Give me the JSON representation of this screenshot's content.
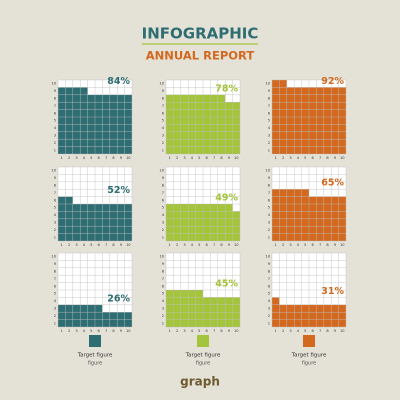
{
  "header": {
    "title": "INFOGRAPHIC",
    "subtitle": "ANNUAL REPORT"
  },
  "chart_data": [
    {
      "type": "waffle",
      "values": [
        84
      ],
      "value_labels": [
        "84%"
      ],
      "color": "#2e6d72",
      "xticks": [
        1,
        2,
        3,
        4,
        5,
        6,
        7,
        8,
        9,
        10
      ],
      "yticks": [
        1,
        2,
        3,
        4,
        5,
        6,
        7,
        8,
        9,
        10
      ]
    },
    {
      "type": "waffle",
      "values": [
        78
      ],
      "value_labels": [
        "78%"
      ],
      "color": "#a4c43b",
      "xticks": [
        1,
        2,
        3,
        4,
        5,
        6,
        7,
        8,
        9,
        10
      ],
      "yticks": [
        1,
        2,
        3,
        4,
        5,
        6,
        7,
        8,
        9,
        10
      ]
    },
    {
      "type": "waffle",
      "values": [
        92
      ],
      "value_labels": [
        "92%"
      ],
      "color": "#d3691f",
      "xticks": [
        1,
        2,
        3,
        4,
        5,
        6,
        7,
        8,
        9,
        10
      ],
      "yticks": [
        1,
        2,
        3,
        4,
        5,
        6,
        7,
        8,
        9,
        10
      ]
    },
    {
      "type": "waffle",
      "values": [
        52
      ],
      "value_labels": [
        "52%"
      ],
      "color": "#2e6d72",
      "xticks": [
        1,
        2,
        3,
        4,
        5,
        6,
        7,
        8,
        9,
        10
      ],
      "yticks": [
        1,
        2,
        3,
        4,
        5,
        6,
        7,
        8,
        9,
        10
      ]
    },
    {
      "type": "waffle",
      "values": [
        49
      ],
      "value_labels": [
        "49%"
      ],
      "color": "#a4c43b",
      "xticks": [
        1,
        2,
        3,
        4,
        5,
        6,
        7,
        8,
        9,
        10
      ],
      "yticks": [
        1,
        2,
        3,
        4,
        5,
        6,
        7,
        8,
        9,
        10
      ]
    },
    {
      "type": "waffle",
      "values": [
        65
      ],
      "value_labels": [
        "65%"
      ],
      "color": "#d3691f",
      "xticks": [
        1,
        2,
        3,
        4,
        5,
        6,
        7,
        8,
        9,
        10
      ],
      "yticks": [
        1,
        2,
        3,
        4,
        5,
        6,
        7,
        8,
        9,
        10
      ]
    },
    {
      "type": "waffle",
      "values": [
        26
      ],
      "value_labels": [
        "26%"
      ],
      "color": "#2e6d72",
      "xticks": [
        1,
        2,
        3,
        4,
        5,
        6,
        7,
        8,
        9,
        10
      ],
      "yticks": [
        1,
        2,
        3,
        4,
        5,
        6,
        7,
        8,
        9,
        10
      ]
    },
    {
      "type": "waffle",
      "values": [
        45
      ],
      "value_labels": [
        "45%"
      ],
      "color": "#a4c43b",
      "xticks": [
        1,
        2,
        3,
        4,
        5,
        6,
        7,
        8,
        9,
        10
      ],
      "yticks": [
        1,
        2,
        3,
        4,
        5,
        6,
        7,
        8,
        9,
        10
      ]
    },
    {
      "type": "waffle",
      "values": [
        31
      ],
      "value_labels": [
        "31%"
      ],
      "color": "#d3691f",
      "xticks": [
        1,
        2,
        3,
        4,
        5,
        6,
        7,
        8,
        9,
        10
      ],
      "yticks": [
        1,
        2,
        3,
        4,
        5,
        6,
        7,
        8,
        9,
        10
      ]
    }
  ],
  "legend": [
    {
      "label": "Target figure",
      "sublabel": "figure",
      "color": "#2e6d72"
    },
    {
      "label": "Target figure",
      "sublabel": "figure",
      "color": "#a4c43b"
    },
    {
      "label": "Target figure",
      "sublabel": "figure",
      "color": "#d3691f"
    }
  ],
  "footer": "graph"
}
